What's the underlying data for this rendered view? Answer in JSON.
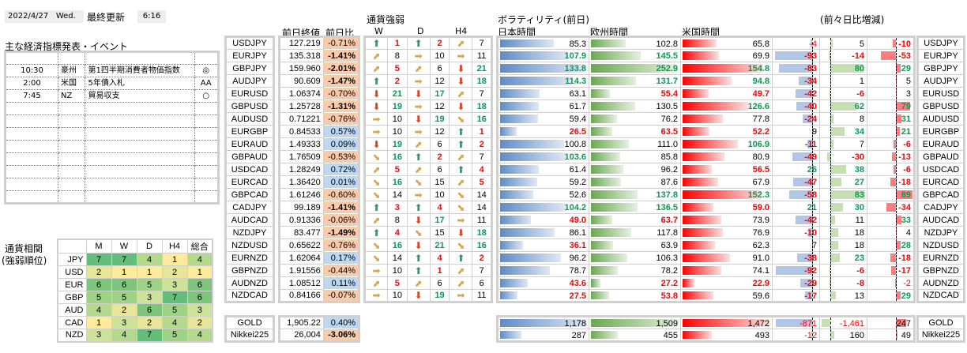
{
  "header": {
    "date": "2022/4/27",
    "weekday": "Wed.",
    "last_updated_label": "最終更新",
    "last_updated_time": "6:16"
  },
  "events": {
    "title": "主な経済指標発表・イベント",
    "rows": [
      {
        "time": "",
        "country": "",
        "event": "",
        "mark": ""
      },
      {
        "time": "10:30",
        "country": "豪州",
        "event": "第1四半期消費者物価指数",
        "mark": "◎"
      },
      {
        "time": "2:00",
        "country": "米国",
        "event": "5年債入札",
        "mark": "AA"
      },
      {
        "time": "7:45",
        "country": "NZ",
        "event": "貿易収支",
        "mark": "○"
      },
      {
        "time": "",
        "country": "",
        "event": "",
        "mark": ""
      },
      {
        "time": "",
        "country": "",
        "event": "",
        "mark": ""
      },
      {
        "time": "",
        "country": "",
        "event": "",
        "mark": ""
      },
      {
        "time": "",
        "country": "",
        "event": "",
        "mark": ""
      },
      {
        "time": "",
        "country": "",
        "event": "",
        "mark": ""
      },
      {
        "time": "",
        "country": "",
        "event": "",
        "mark": ""
      },
      {
        "time": "",
        "country": "",
        "event": "",
        "mark": ""
      },
      {
        "time": "",
        "country": "",
        "event": "",
        "mark": ""
      }
    ]
  },
  "correlation": {
    "title_line1": "通貨相関",
    "title_line2": "(強弱順位)",
    "columns": [
      "M",
      "W",
      "D",
      "H4",
      "総合"
    ],
    "rows": [
      {
        "currency": "JPY",
        "values": [
          7,
          7,
          4,
          1,
          4
        ]
      },
      {
        "currency": "USD",
        "values": [
          2,
          1,
          1,
          2,
          1
        ]
      },
      {
        "currency": "EUR",
        "values": [
          6,
          6,
          5,
          3,
          6
        ]
      },
      {
        "currency": "GBP",
        "values": [
          5,
          5,
          3,
          7,
          6
        ]
      },
      {
        "currency": "AUD",
        "values": [
          4,
          2,
          6,
          5,
          3
        ]
      },
      {
        "currency": "CAD",
        "values": [
          1,
          3,
          2,
          4,
          2
        ]
      },
      {
        "currency": "NZD",
        "values": [
          3,
          4,
          7,
          5,
          4
        ]
      }
    ]
  },
  "quotes": {
    "close_header": "前日終値",
    "change_header": "前日比",
    "pairs": [
      {
        "pair": "USDJPY",
        "close": "127.219",
        "change": "-0.71%",
        "bold": false
      },
      {
        "pair": "EURJPY",
        "close": "135.318",
        "change": "-1.41%",
        "bold": true
      },
      {
        "pair": "GBPJPY",
        "close": "159.960",
        "change": "-2.01%",
        "bold": true
      },
      {
        "pair": "AUDJPY",
        "close": "90.609",
        "change": "-1.47%",
        "bold": true
      },
      {
        "pair": "EURUSD",
        "close": "1.06374",
        "change": "-0.70%",
        "bold": false
      },
      {
        "pair": "GBPUSD",
        "close": "1.25728",
        "change": "-1.31%",
        "bold": true
      },
      {
        "pair": "AUDUSD",
        "close": "0.71221",
        "change": "-0.76%",
        "bold": false
      },
      {
        "pair": "EURGBP",
        "close": "0.84533",
        "change": "0.57%",
        "bold": false
      },
      {
        "pair": "EURAUD",
        "close": "1.49333",
        "change": "0.09%",
        "bold": false
      },
      {
        "pair": "GBPAUD",
        "close": "1.76509",
        "change": "-0.53%",
        "bold": false
      },
      {
        "pair": "USDCAD",
        "close": "1.28249",
        "change": "0.72%",
        "bold": false
      },
      {
        "pair": "EURCAD",
        "close": "1.36420",
        "change": "0.01%",
        "bold": false
      },
      {
        "pair": "GBPCAD",
        "close": "1.61246",
        "change": "-0.60%",
        "bold": false
      },
      {
        "pair": "CADJPY",
        "close": "99.189",
        "change": "-1.41%",
        "bold": true
      },
      {
        "pair": "AUDCAD",
        "close": "0.91336",
        "change": "-0.06%",
        "bold": false
      },
      {
        "pair": "NZDJPY",
        "close": "83.477",
        "change": "-1.49%",
        "bold": true
      },
      {
        "pair": "NZDUSD",
        "close": "0.65622",
        "change": "-0.76%",
        "bold": false
      },
      {
        "pair": "EURNZD",
        "close": "1.62064",
        "change": "0.17%",
        "bold": false
      },
      {
        "pair": "GBPNZD",
        "close": "1.91556",
        "change": "-0.44%",
        "bold": false
      },
      {
        "pair": "AUDNZD",
        "close": "1.08512",
        "change": "0.11%",
        "bold": false
      },
      {
        "pair": "NZDCAD",
        "close": "0.84166",
        "change": "-0.07%",
        "bold": false
      }
    ],
    "extras": [
      {
        "pair": "GOLD",
        "close": "1,905.22",
        "change": "0.40%",
        "bold": false
      },
      {
        "pair": "Nikkei225",
        "close": "26,004",
        "change": "-3.06%",
        "bold": true
      }
    ]
  },
  "strength": {
    "title": "通貨強弱",
    "columns": [
      "W",
      "D",
      "H4"
    ],
    "rows": [
      [
        [
          "up",
          1
        ],
        [
          "up",
          2
        ],
        [
          "upright",
          7
        ]
      ],
      [
        [
          "upright",
          8
        ],
        [
          "right",
          10
        ],
        [
          "right",
          11
        ]
      ],
      [
        [
          "upright",
          5
        ],
        [
          "upright",
          6
        ],
        [
          "down",
          21
        ]
      ],
      [
        [
          "up",
          2
        ],
        [
          "right",
          12
        ],
        [
          "down",
          18
        ]
      ],
      [
        [
          "down",
          21
        ],
        [
          "down",
          17
        ],
        [
          "upright",
          7
        ]
      ],
      [
        [
          "down",
          19
        ],
        [
          "right",
          12
        ],
        [
          "down",
          18
        ]
      ],
      [
        [
          "right",
          10
        ],
        [
          "down",
          19
        ],
        [
          "downright",
          16
        ]
      ],
      [
        [
          "right",
          10
        ],
        [
          "right",
          12
        ],
        [
          "up",
          1
        ]
      ],
      [
        [
          "down",
          19
        ],
        [
          "upright",
          6
        ],
        [
          "up",
          2
        ]
      ],
      [
        [
          "downright",
          16
        ],
        [
          "up",
          2
        ],
        [
          "upright",
          7
        ]
      ],
      [
        [
          "upright",
          5
        ],
        [
          "upright",
          6
        ],
        [
          "up",
          4
        ]
      ],
      [
        [
          "downright",
          16
        ],
        [
          "downright",
          15
        ],
        [
          "upright",
          5
        ]
      ],
      [
        [
          "downright",
          14
        ],
        [
          "right",
          10
        ],
        [
          "downright",
          14
        ]
      ],
      [
        [
          "up",
          3
        ],
        [
          "up",
          4
        ],
        [
          "downright",
          14
        ]
      ],
      [
        [
          "upright",
          8
        ],
        [
          "down",
          17
        ],
        [
          "right",
          11
        ]
      ],
      [
        [
          "up",
          4
        ],
        [
          "downright",
          15
        ],
        [
          "down",
          18
        ]
      ],
      [
        [
          "downright",
          16
        ],
        [
          "down",
          21
        ],
        [
          "downright",
          16
        ]
      ],
      [
        [
          "downright",
          14
        ],
        [
          "up",
          4
        ],
        [
          "up",
          2
        ]
      ],
      [
        [
          "right",
          10
        ],
        [
          "up",
          1
        ],
        [
          "upright",
          7
        ]
      ],
      [
        [
          "upright",
          5
        ],
        [
          "upright",
          6
        ],
        [
          "upright",
          6
        ]
      ],
      [
        [
          "right",
          10
        ],
        [
          "down",
          19
        ],
        [
          "right",
          11
        ]
      ]
    ]
  },
  "volatility": {
    "title": "ボラティリティ(前日)",
    "columns": [
      "日本時間",
      "欧州時間",
      "米国時間"
    ],
    "diff_title": "(前々日比増減)",
    "rows": [
      {
        "jp": "85.3",
        "eu": "102.8",
        "us": "65.8",
        "jp_c": "",
        "eu_c": "",
        "us_c": "",
        "d1": -4,
        "d2": 5,
        "d3": -10
      },
      {
        "jp": "107.9",
        "eu": "145.5",
        "us": "69.9",
        "jp_c": "g",
        "eu_c": "g",
        "us_c": "",
        "d1": -93,
        "d2": -14,
        "d3": -53
      },
      {
        "jp": "133.8",
        "eu": "252.9",
        "us": "154.8",
        "jp_c": "g",
        "eu_c": "g",
        "us_c": "g",
        "d1": -83,
        "d2": 80,
        "d3": 29
      },
      {
        "jp": "114.3",
        "eu": "131.7",
        "us": "94.8",
        "jp_c": "g",
        "eu_c": "g",
        "us_c": "g",
        "d1": -34,
        "d2": 1,
        "d3": 5
      },
      {
        "jp": "63.1",
        "eu": "55.4",
        "us": "49.7",
        "jp_c": "",
        "eu_c": "r",
        "us_c": "r",
        "d1": -42,
        "d2": -6,
        "d3": 3
      },
      {
        "jp": "61.7",
        "eu": "130.5",
        "us": "126.6",
        "jp_c": "",
        "eu_c": "",
        "us_c": "g",
        "d1": -40,
        "d2": 62,
        "d3": 79
      },
      {
        "jp": "59.4",
        "eu": "76.2",
        "us": "77.8",
        "jp_c": "",
        "eu_c": "",
        "us_c": "",
        "d1": -24,
        "d2": 8,
        "d3": 31
      },
      {
        "jp": "26.5",
        "eu": "63.5",
        "us": "52.2",
        "jp_c": "r",
        "eu_c": "r",
        "us_c": "r",
        "d1": 9,
        "d2": 34,
        "d3": 21
      },
      {
        "jp": "100.8",
        "eu": "111.0",
        "us": "106.9",
        "jp_c": "",
        "eu_c": "",
        "us_c": "g",
        "d1": -11,
        "d2": 7,
        "d3": -6
      },
      {
        "jp": "103.6",
        "eu": "85.8",
        "us": "80.9",
        "jp_c": "g",
        "eu_c": "",
        "us_c": "",
        "d1": -49,
        "d2": -30,
        "d3": -13
      },
      {
        "jp": "61.4",
        "eu": "96.2",
        "us": "56.5",
        "jp_c": "",
        "eu_c": "",
        "us_c": "r",
        "d1": 26,
        "d2": 38,
        "d3": -6
      },
      {
        "jp": "59.2",
        "eu": "87.6",
        "us": "67.9",
        "jp_c": "",
        "eu_c": "",
        "us_c": "",
        "d1": -47,
        "d2": 27,
        "d3": -18
      },
      {
        "jp": "52.6",
        "eu": "137.8",
        "us": "152.3",
        "jp_c": "",
        "eu_c": "g",
        "us_c": "g",
        "d1": -58,
        "d2": 83,
        "d3": 89
      },
      {
        "jp": "104.2",
        "eu": "136.5",
        "us": "59.0",
        "jp_c": "g",
        "eu_c": "g",
        "us_c": "r",
        "d1": 21,
        "d2": 30,
        "d3": -34
      },
      {
        "jp": "49.0",
        "eu": "63.7",
        "us": "73.9",
        "jp_c": "r",
        "eu_c": "r",
        "us_c": "",
        "d1": -42,
        "d2": 11,
        "d3": 33
      },
      {
        "jp": "86.1",
        "eu": "117.8",
        "us": "76.9",
        "jp_c": "",
        "eu_c": "",
        "us_c": "",
        "d1": -10,
        "d2": 18,
        "d3": 4
      },
      {
        "jp": "36.1",
        "eu": "63.9",
        "us": "62.3",
        "jp_c": "r",
        "eu_c": "",
        "us_c": "",
        "d1": 7,
        "d2": 18,
        "d3": 28
      },
      {
        "jp": "96.2",
        "eu": "106.3",
        "us": "91.0",
        "jp_c": "",
        "eu_c": "",
        "us_c": "",
        "d1": -38,
        "d2": 23,
        "d3": -18
      },
      {
        "jp": "78.7",
        "eu": "78.2",
        "us": "74.1",
        "jp_c": "",
        "eu_c": "",
        "us_c": "",
        "d1": -92,
        "d2": -6,
        "d3": -17
      },
      {
        "jp": "43.6",
        "eu": "27.2",
        "us": "22.9",
        "jp_c": "r",
        "eu_c": "r",
        "us_c": "r",
        "d1": -29,
        "d2": -8,
        "d3": -2
      },
      {
        "jp": "27.5",
        "eu": "53.8",
        "us": "59.6",
        "jp_c": "r",
        "eu_c": "r",
        "us_c": "",
        "d1": -17,
        "d2": 13,
        "d3": 29
      }
    ],
    "extras": [
      {
        "jp": "1,178",
        "eu": "1,509",
        "us": "1,472",
        "jp_v": 1178,
        "eu_v": 1509,
        "us_v": 1472,
        "d1": "-871",
        "d2": "-1,461",
        "d3": "247",
        "d1_v": -871,
        "d2_v": -1461,
        "d3_v": 247
      },
      {
        "jp": "287",
        "eu": "455",
        "us": "493",
        "jp_v": 287,
        "eu_v": 455,
        "us_v": 493,
        "d1": "-12",
        "d2": "160",
        "d3": "49",
        "d1_v": -12,
        "d2_v": 160,
        "d3_v": 49
      }
    ]
  }
}
